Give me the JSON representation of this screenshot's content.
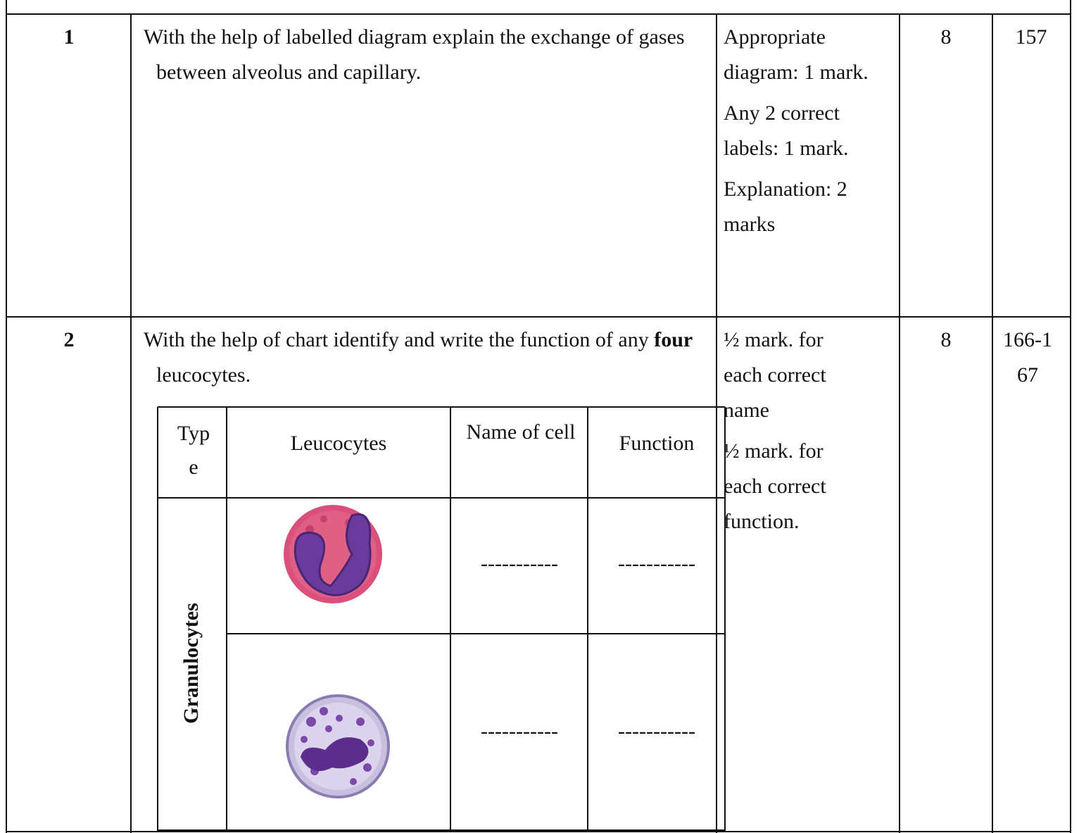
{
  "rows": [
    {
      "number": "1",
      "question": [
        "With the help of labelled diagram explain the exchange of gases between alveolus and capillary."
      ],
      "scheme": [
        "Appropriate diagram: 1 mark.",
        "Any 2 correct labels: 1 mark.",
        "Explanation: 2 marks"
      ],
      "marks": "8",
      "page": "157"
    },
    {
      "number": "2",
      "question": [
        "With the help of chart identify and write the function of any ",
        "four",
        " leucocytes."
      ],
      "scheme": [
        "½ mark. for each correct name",
        "½ mark. for each correct function."
      ],
      "marks": "8",
      "page": "166-167"
    }
  ],
  "chart_table": {
    "headers": [
      "Type",
      "Leucocytes",
      "Name of cell",
      "Function"
    ],
    "type_label": "Granulocytes",
    "rows": [
      [
        "-----------",
        "-----------"
      ],
      [
        "-----------",
        "-----------"
      ]
    ]
  }
}
